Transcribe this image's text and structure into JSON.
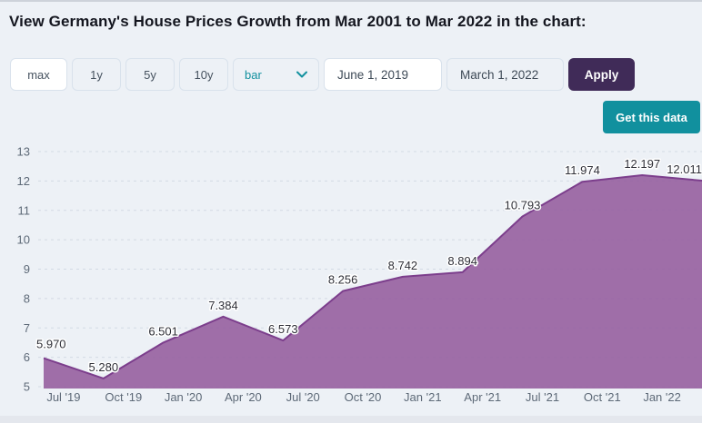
{
  "page": {
    "title": "View Germany's House Prices Growth from Mar 2001 to Mar 2022 in the chart:"
  },
  "toolbar": {
    "range_buttons": [
      {
        "label": "max",
        "selected": true
      },
      {
        "label": "1y",
        "selected": false
      },
      {
        "label": "5y",
        "selected": false
      },
      {
        "label": "10y",
        "selected": false
      }
    ],
    "chart_type": "bar",
    "start_date": "June 1, 2019",
    "end_date": "March 1, 2022",
    "apply": "Apply"
  },
  "actions": {
    "get_data": "Get this data"
  },
  "colors": {
    "accent_teal": "#11909e",
    "apply_purple": "#402b58",
    "area_fill": "#965fa0",
    "area_line": "#7c3e8c",
    "background": "#edf1f6"
  },
  "chart_data": {
    "type": "area",
    "values": [
      5.97,
      5.28,
      6.501,
      7.384,
      6.573,
      8.256,
      8.742,
      8.894,
      10.793,
      11.974,
      12.197,
      12.011
    ],
    "point_labels": [
      "5.970",
      "5.280",
      "6.501",
      "7.384",
      "6.573",
      "8.256",
      "8.742",
      "8.894",
      "10.793",
      "11.974",
      "12.197",
      "12.011"
    ],
    "x_tick_labels": [
      "Jul '19",
      "Oct '19",
      "Jan '20",
      "Apr '20",
      "Jul '20",
      "Oct '20",
      "Jan '21",
      "Apr '21",
      "Jul '21",
      "Oct '21",
      "Jan '22"
    ],
    "y_ticks": [
      5,
      6,
      7,
      8,
      9,
      10,
      11,
      12,
      13
    ],
    "ylim": [
      5,
      13
    ],
    "grid": "horizontal-dashed",
    "legend": "none"
  }
}
